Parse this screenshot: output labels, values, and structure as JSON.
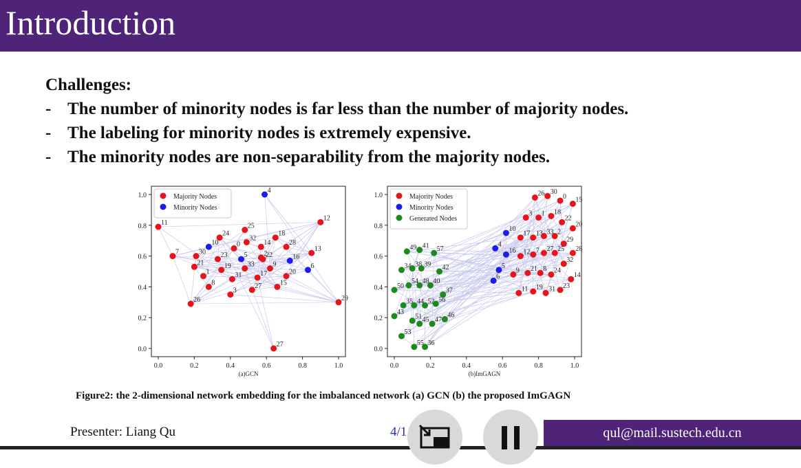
{
  "slide": {
    "title": "Introduction",
    "heading": "Challenges:",
    "bullets": [
      "The number of minority nodes is far less than the number of majority nodes.",
      "The labeling for minority nodes is extremely expensive.",
      "The minority nodes are non-separability from the majority nodes."
    ],
    "bullet_marker": "-",
    "caption": "Figure2: the 2-dimensional network embedding for the imbalanced network (a) GCN (b) the proposed ImGAGN",
    "presenter": "Presenter: Liang Qu",
    "page": "4/1",
    "email": "qul@mail.sustech.edu.cn"
  },
  "controls": {
    "exit_icon": "exit-fullscreen-icon",
    "pause_icon": "pause-icon"
  },
  "colors": {
    "accent": "#4f2377",
    "majority": "#e8141b",
    "minority": "#1c1cf0",
    "generated": "#1c8a1c",
    "edge": "#c9c9ee"
  },
  "chart_data": [
    {
      "type": "scatter",
      "xlabel": "(a)GCN",
      "xlim": [
        0,
        1.0
      ],
      "ylim": [
        0,
        1.0
      ],
      "xticks": [
        "0.0",
        "0.2",
        "0.4",
        "0.6",
        "0.8",
        "1.0"
      ],
      "yticks": [
        "0.0",
        "0.2",
        "0.4",
        "0.6",
        "0.8",
        "1.0"
      ],
      "legend": [
        "Majority Nodes",
        "Minority Nodes"
      ],
      "legend_position": "top-left",
      "points": [
        {
          "id": "4",
          "x": 0.59,
          "y": 1.0,
          "c": "minority"
        },
        {
          "id": "12",
          "x": 0.9,
          "y": 0.82,
          "c": "majority"
        },
        {
          "id": "11",
          "x": 0.0,
          "y": 0.79,
          "c": "majority"
        },
        {
          "id": "25",
          "x": 0.48,
          "y": 0.77,
          "c": "majority"
        },
        {
          "id": "24",
          "x": 0.34,
          "y": 0.72,
          "c": "majority"
        },
        {
          "id": "18",
          "x": 0.65,
          "y": 0.72,
          "c": "majority"
        },
        {
          "id": "32",
          "x": 0.49,
          "y": 0.69,
          "c": "majority"
        },
        {
          "id": "10",
          "x": 0.28,
          "y": 0.66,
          "c": "minority"
        },
        {
          "id": "0",
          "x": 0.42,
          "y": 0.65,
          "c": "majority"
        },
        {
          "id": "14",
          "x": 0.57,
          "y": 0.66,
          "c": "majority"
        },
        {
          "id": "28",
          "x": 0.71,
          "y": 0.66,
          "c": "majority"
        },
        {
          "id": "13",
          "x": 0.85,
          "y": 0.62,
          "c": "majority"
        },
        {
          "id": "7",
          "x": 0.08,
          "y": 0.6,
          "c": "majority"
        },
        {
          "id": "30",
          "x": 0.21,
          "y": 0.6,
          "c": "majority"
        },
        {
          "id": "23",
          "x": 0.33,
          "y": 0.58,
          "c": "majority"
        },
        {
          "id": "5",
          "x": 0.46,
          "y": 0.58,
          "c": "minority"
        },
        {
          "id": "2",
          "x": 0.57,
          "y": 0.59,
          "c": "majority"
        },
        {
          "id": "22",
          "x": 0.58,
          "y": 0.58,
          "c": "majority"
        },
        {
          "id": "16",
          "x": 0.73,
          "y": 0.57,
          "c": "minority"
        },
        {
          "id": "21",
          "x": 0.2,
          "y": 0.53,
          "c": "majority"
        },
        {
          "id": "19",
          "x": 0.35,
          "y": 0.51,
          "c": "majority"
        },
        {
          "id": "33",
          "x": 0.48,
          "y": 0.52,
          "c": "majority"
        },
        {
          "id": "9",
          "x": 0.62,
          "y": 0.52,
          "c": "majority"
        },
        {
          "id": "6",
          "x": 0.83,
          "y": 0.51,
          "c": "minority"
        },
        {
          "id": "1",
          "x": 0.25,
          "y": 0.47,
          "c": "majority"
        },
        {
          "id": "31",
          "x": 0.41,
          "y": 0.45,
          "c": "majority"
        },
        {
          "id": "17",
          "x": 0.55,
          "y": 0.46,
          "c": "majority"
        },
        {
          "id": "20",
          "x": 0.71,
          "y": 0.47,
          "c": "majority"
        },
        {
          "id": "8",
          "x": 0.28,
          "y": 0.4,
          "c": "majority"
        },
        {
          "id": "15",
          "x": 0.66,
          "y": 0.4,
          "c": "majority"
        },
        {
          "id": "3",
          "x": 0.4,
          "y": 0.35,
          "c": "majority"
        },
        {
          "id": "27",
          "x": 0.52,
          "y": 0.38,
          "c": "majority"
        },
        {
          "id": "26",
          "x": 0.18,
          "y": 0.29,
          "c": "majority"
        },
        {
          "id": "29",
          "x": 1.0,
          "y": 0.3,
          "c": "majority"
        },
        {
          "id": "27b",
          "label": "27",
          "x": 0.64,
          "y": 0.0,
          "c": "majority"
        }
      ]
    },
    {
      "type": "scatter",
      "xlabel": "(b)ImGAGN",
      "xlim": [
        0,
        1.0
      ],
      "ylim": [
        0,
        1.0
      ],
      "xticks": [
        "0.0",
        "0.2",
        "0.4",
        "0.6",
        "0.8",
        "1.0"
      ],
      "yticks": [
        "0.0",
        "0.2",
        "0.4",
        "0.6",
        "0.8",
        "1.0"
      ],
      "legend": [
        "Majority Nodes",
        "Minority Nodes",
        "Generated Nodes"
      ],
      "legend_position": "top-left",
      "points": [
        {
          "id": "26",
          "x": 0.78,
          "y": 0.98,
          "c": "majority"
        },
        {
          "id": "30",
          "x": 0.85,
          "y": 0.99,
          "c": "majority"
        },
        {
          "id": "0",
          "x": 0.92,
          "y": 0.96,
          "c": "majority"
        },
        {
          "id": "15",
          "x": 0.99,
          "y": 0.94,
          "c": "majority"
        },
        {
          "id": "3",
          "x": 0.73,
          "y": 0.85,
          "c": "majority"
        },
        {
          "id": "1",
          "x": 0.8,
          "y": 0.85,
          "c": "majority"
        },
        {
          "id": "18",
          "x": 0.87,
          "y": 0.86,
          "c": "majority"
        },
        {
          "id": "22",
          "x": 0.93,
          "y": 0.82,
          "c": "majority"
        },
        {
          "id": "20",
          "x": 0.99,
          "y": 0.78,
          "c": "majority"
        },
        {
          "id": "10",
          "x": 0.62,
          "y": 0.75,
          "c": "minority"
        },
        {
          "id": "17",
          "x": 0.7,
          "y": 0.72,
          "c": "majority"
        },
        {
          "id": "13",
          "x": 0.77,
          "y": 0.72,
          "c": "majority"
        },
        {
          "id": "33",
          "x": 0.83,
          "y": 0.73,
          "c": "majority"
        },
        {
          "id": "2",
          "x": 0.89,
          "y": 0.73,
          "c": "majority"
        },
        {
          "id": "29",
          "x": 0.94,
          "y": 0.68,
          "c": "majority"
        },
        {
          "id": "4",
          "x": 0.56,
          "y": 0.65,
          "c": "minority"
        },
        {
          "id": "16",
          "x": 0.62,
          "y": 0.61,
          "c": "minority"
        },
        {
          "id": "12",
          "x": 0.7,
          "y": 0.6,
          "c": "majority"
        },
        {
          "id": "7",
          "x": 0.77,
          "y": 0.61,
          "c": "majority"
        },
        {
          "id": "27",
          "x": 0.83,
          "y": 0.62,
          "c": "majority"
        },
        {
          "id": "25",
          "x": 0.89,
          "y": 0.62,
          "c": "majority"
        },
        {
          "id": "28",
          "x": 0.99,
          "y": 0.62,
          "c": "majority"
        },
        {
          "id": "32",
          "x": 0.94,
          "y": 0.55,
          "c": "majority"
        },
        {
          "id": "5",
          "x": 0.58,
          "y": 0.51,
          "c": "minority"
        },
        {
          "id": "9",
          "x": 0.66,
          "y": 0.48,
          "c": "majority"
        },
        {
          "id": "21",
          "x": 0.74,
          "y": 0.49,
          "c": "majority"
        },
        {
          "id": "8",
          "x": 0.81,
          "y": 0.49,
          "c": "majority"
        },
        {
          "id": "24",
          "x": 0.87,
          "y": 0.48,
          "c": "majority"
        },
        {
          "id": "14",
          "x": 0.98,
          "y": 0.45,
          "c": "majority"
        },
        {
          "id": "6",
          "x": 0.55,
          "y": 0.44,
          "c": "minority"
        },
        {
          "id": "11",
          "x": 0.69,
          "y": 0.36,
          "c": "majority"
        },
        {
          "id": "19",
          "x": 0.77,
          "y": 0.37,
          "c": "majority"
        },
        {
          "id": "31",
          "x": 0.84,
          "y": 0.36,
          "c": "majority"
        },
        {
          "id": "23",
          "x": 0.92,
          "y": 0.38,
          "c": "majority"
        },
        {
          "id": "49",
          "x": 0.07,
          "y": 0.63,
          "c": "generated"
        },
        {
          "id": "41",
          "x": 0.14,
          "y": 0.64,
          "c": "generated"
        },
        {
          "id": "57",
          "x": 0.22,
          "y": 0.62,
          "c": "generated"
        },
        {
          "id": "34",
          "x": 0.04,
          "y": 0.51,
          "c": "generated"
        },
        {
          "id": "38",
          "x": 0.1,
          "y": 0.52,
          "c": "generated"
        },
        {
          "id": "39",
          "x": 0.15,
          "y": 0.52,
          "c": "generated"
        },
        {
          "id": "42",
          "x": 0.25,
          "y": 0.5,
          "c": "generated"
        },
        {
          "id": "50",
          "x": 0.0,
          "y": 0.38,
          "c": "generated"
        },
        {
          "id": "54",
          "x": 0.08,
          "y": 0.41,
          "c": "generated"
        },
        {
          "id": "48",
          "x": 0.14,
          "y": 0.41,
          "c": "generated"
        },
        {
          "id": "40",
          "x": 0.2,
          "y": 0.41,
          "c": "generated"
        },
        {
          "id": "37",
          "x": 0.27,
          "y": 0.35,
          "c": "generated"
        },
        {
          "id": "35",
          "x": 0.05,
          "y": 0.28,
          "c": "generated"
        },
        {
          "id": "44",
          "x": 0.11,
          "y": 0.28,
          "c": "generated"
        },
        {
          "id": "52",
          "x": 0.17,
          "y": 0.28,
          "c": "generated"
        },
        {
          "id": "56",
          "x": 0.23,
          "y": 0.29,
          "c": "generated"
        },
        {
          "id": "43",
          "x": 0.0,
          "y": 0.21,
          "c": "generated"
        },
        {
          "id": "51",
          "x": 0.1,
          "y": 0.18,
          "c": "generated"
        },
        {
          "id": "45",
          "x": 0.14,
          "y": 0.16,
          "c": "generated"
        },
        {
          "id": "47",
          "x": 0.21,
          "y": 0.16,
          "c": "generated"
        },
        {
          "id": "46",
          "x": 0.28,
          "y": 0.19,
          "c": "generated"
        },
        {
          "id": "53",
          "x": 0.04,
          "y": 0.08,
          "c": "generated"
        },
        {
          "id": "55",
          "x": 0.11,
          "y": 0.01,
          "c": "generated"
        },
        {
          "id": "36",
          "x": 0.17,
          "y": 0.01,
          "c": "generated"
        }
      ]
    }
  ]
}
